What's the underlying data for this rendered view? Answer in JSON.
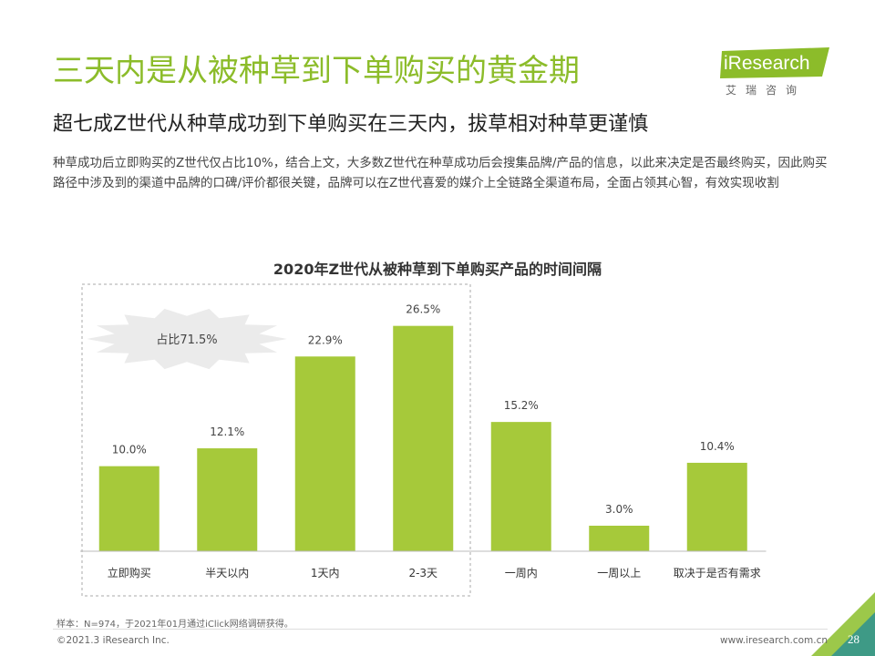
{
  "header": {
    "title": "三天内是从被种草到下单购买的黄金期",
    "subtitle": "超七成Z世代从种草成功到下单购买在三天内，拔草相对种草更谨慎",
    "description": "种草成功后立即购买的Z世代仅占比10%，结合上文，大多数Z世代在种草成功后会搜集品牌/产品的信息，以此来决定是否最终购买，因此购买路径中涉及到的渠道中品牌的口碑/评价都很关键，品牌可以在Z世代喜爱的媒介上全链路全渠道布局，全面占领其心智，有效实现收割"
  },
  "logo": {
    "text": "iResearch",
    "cn": "艾瑞咨询"
  },
  "chart_data": {
    "type": "bar",
    "title": "2020年Z世代从被种草到下单购买产品的时间间隔",
    "categories": [
      "立即购买",
      "半天以内",
      "1天内",
      "2-3天",
      "一周内",
      "一周以上",
      "取决于是否有需求"
    ],
    "values": [
      10.0,
      12.1,
      22.9,
      26.5,
      15.2,
      3.0,
      10.4
    ],
    "value_labels": [
      "10.0%",
      "12.1%",
      "22.9%",
      "26.5%",
      "15.2%",
      "3.0%",
      "10.4%"
    ],
    "ylim": [
      0,
      30
    ],
    "grid": false,
    "bar_color": "#a6c93a",
    "highlight": {
      "label": "占比71.5%",
      "range_categories": [
        0,
        3
      ]
    }
  },
  "footer": {
    "footnote": "样本：N=974，于2021年01月通过iClick网络调研获得。",
    "copyright": "©2021.3 iResearch Inc.",
    "website": "www.iresearch.com.cn",
    "page": "28"
  },
  "colors": {
    "accent": "#8cbc2a",
    "bar": "#a6c93a",
    "corner_dark": "#3e9a86",
    "corner_light": "#9cc84a"
  }
}
